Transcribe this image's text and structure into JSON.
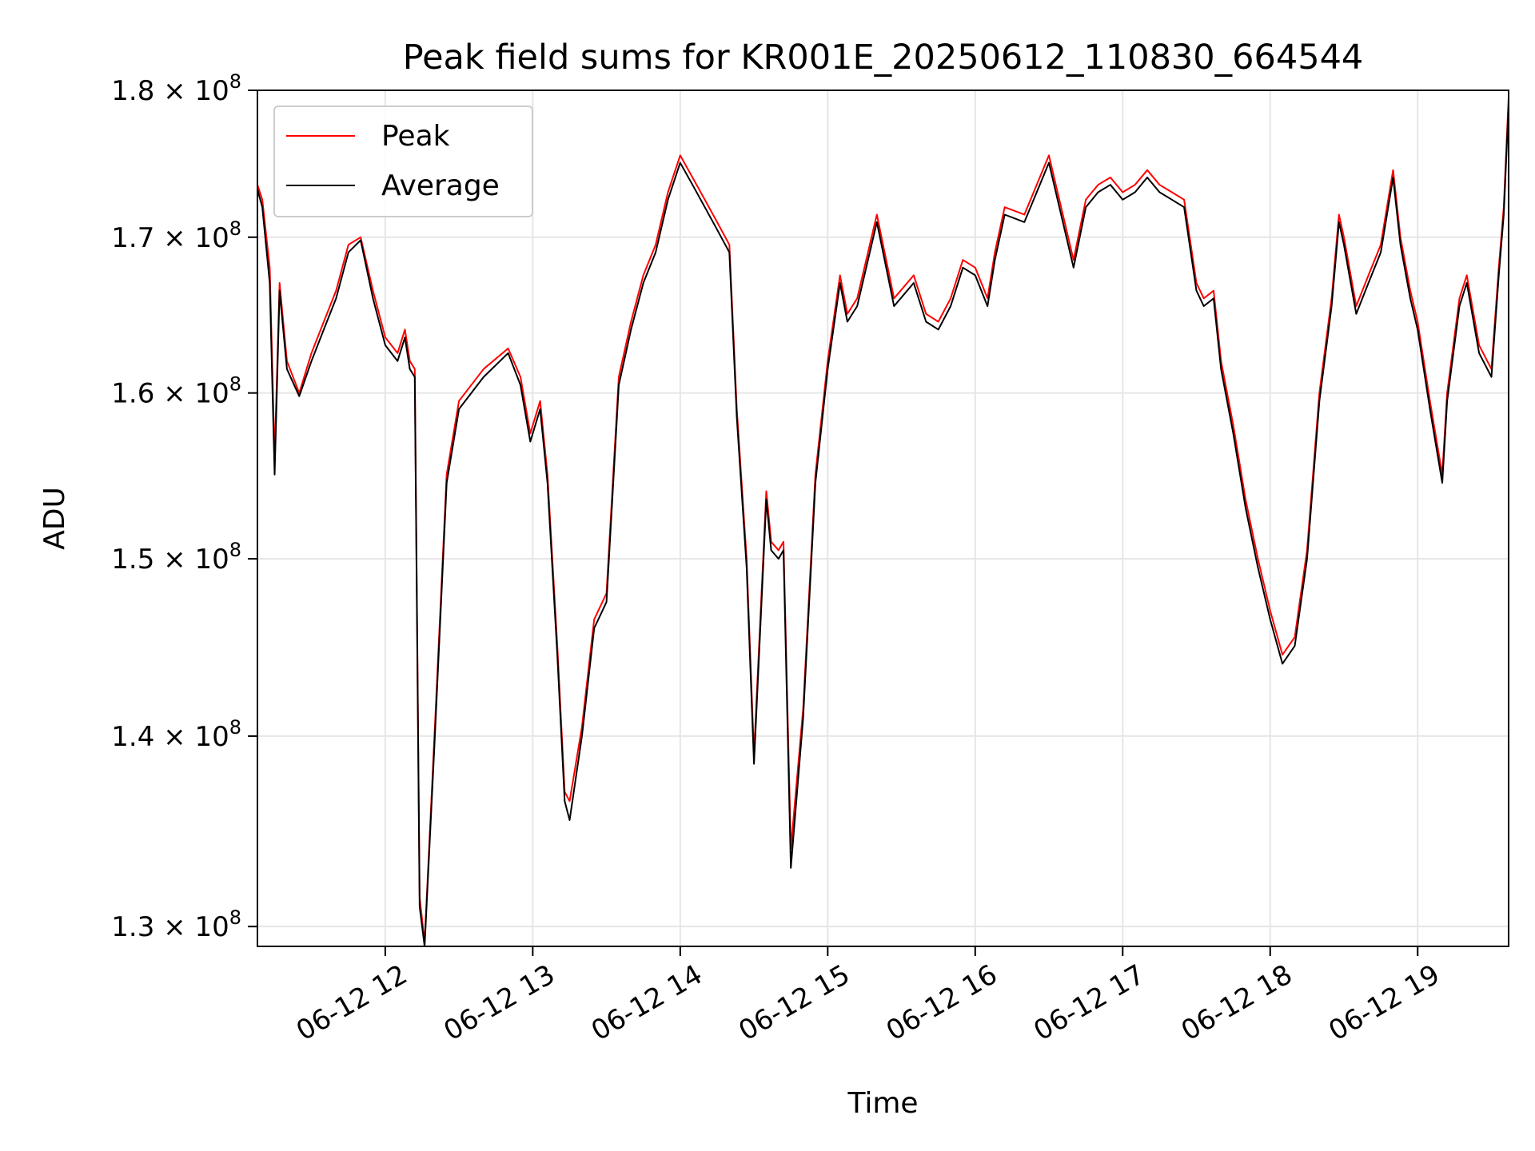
{
  "chart_data": {
    "type": "line",
    "title": "Peak field sums for KR001E_20250612_110830_664544",
    "xlabel": "Time",
    "ylabel": "ADU",
    "yscale": "log",
    "xlim": [
      "2025-06-12T11:08",
      "2025-06-12T19:37"
    ],
    "ylim": [
      129000000,
      180000000
    ],
    "x_ticks": [
      "06-12 12",
      "06-12 13",
      "06-12 14",
      "06-12 15",
      "06-12 16",
      "06-12 17",
      "06-12 18",
      "06-12 19"
    ],
    "y_ticks": [
      {
        "value": 130000000,
        "label": "1.3 × 10^8"
      },
      {
        "value": 140000000,
        "label": "1.4 × 10^8"
      },
      {
        "value": 150000000,
        "label": "1.5 × 10^8"
      },
      {
        "value": 160000000,
        "label": "1.6 × 10^8"
      },
      {
        "value": 170000000,
        "label": "1.7 × 10^8"
      },
      {
        "value": 180000000,
        "label": "1.8 × 10^8"
      }
    ],
    "grid": true,
    "legend_position": "top-left",
    "x": [
      "2025-06-12T11:08",
      "2025-06-12T11:10",
      "2025-06-12T11:13",
      "2025-06-12T11:15",
      "2025-06-12T11:17",
      "2025-06-12T11:20",
      "2025-06-12T11:25",
      "2025-06-12T11:30",
      "2025-06-12T11:35",
      "2025-06-12T11:40",
      "2025-06-12T11:45",
      "2025-06-12T11:50",
      "2025-06-12T11:55",
      "2025-06-12T12:00",
      "2025-06-12T12:05",
      "2025-06-12T12:08",
      "2025-06-12T12:10",
      "2025-06-12T12:12",
      "2025-06-12T12:14",
      "2025-06-12T12:16",
      "2025-06-12T12:20",
      "2025-06-12T12:25",
      "2025-06-12T12:30",
      "2025-06-12T12:40",
      "2025-06-12T12:50",
      "2025-06-12T12:55",
      "2025-06-12T12:59",
      "2025-06-12T13:03",
      "2025-06-12T13:06",
      "2025-06-12T13:10",
      "2025-06-12T13:13",
      "2025-06-12T13:15",
      "2025-06-12T13:20",
      "2025-06-12T13:25",
      "2025-06-12T13:30",
      "2025-06-12T13:35",
      "2025-06-12T13:40",
      "2025-06-12T13:45",
      "2025-06-12T13:50",
      "2025-06-12T13:55",
      "2025-06-12T14:00",
      "2025-06-12T14:05",
      "2025-06-12T14:10",
      "2025-06-12T14:15",
      "2025-06-12T14:20",
      "2025-06-12T14:23",
      "2025-06-12T14:27",
      "2025-06-12T14:30",
      "2025-06-12T14:35",
      "2025-06-12T14:37",
      "2025-06-12T14:40",
      "2025-06-12T14:42",
      "2025-06-12T14:45",
      "2025-06-12T14:50",
      "2025-06-12T14:55",
      "2025-06-12T15:00",
      "2025-06-12T15:05",
      "2025-06-12T15:08",
      "2025-06-12T15:12",
      "2025-06-12T15:20",
      "2025-06-12T15:27",
      "2025-06-12T15:35",
      "2025-06-12T15:40",
      "2025-06-12T15:45",
      "2025-06-12T15:50",
      "2025-06-12T15:55",
      "2025-06-12T16:00",
      "2025-06-12T16:05",
      "2025-06-12T16:08",
      "2025-06-12T16:12",
      "2025-06-12T16:20",
      "2025-06-12T16:30",
      "2025-06-12T16:40",
      "2025-06-12T16:45",
      "2025-06-12T16:50",
      "2025-06-12T16:55",
      "2025-06-12T17:00",
      "2025-06-12T17:05",
      "2025-06-12T17:10",
      "2025-06-12T17:15",
      "2025-06-12T17:20",
      "2025-06-12T17:25",
      "2025-06-12T17:30",
      "2025-06-12T17:33",
      "2025-06-12T17:37",
      "2025-06-12T17:40",
      "2025-06-12T17:45",
      "2025-06-12T17:50",
      "2025-06-12T17:55",
      "2025-06-12T18:00",
      "2025-06-12T18:05",
      "2025-06-12T18:10",
      "2025-06-12T18:15",
      "2025-06-12T18:20",
      "2025-06-12T18:25",
      "2025-06-12T18:28",
      "2025-06-12T18:30",
      "2025-06-12T18:35",
      "2025-06-12T18:40",
      "2025-06-12T18:45",
      "2025-06-12T18:50",
      "2025-06-12T18:53",
      "2025-06-12T18:57",
      "2025-06-12T19:00",
      "2025-06-12T19:05",
      "2025-06-12T19:10",
      "2025-06-12T19:12",
      "2025-06-12T19:17",
      "2025-06-12T19:20",
      "2025-06-12T19:25",
      "2025-06-12T19:30",
      "2025-06-12T19:33",
      "2025-06-12T19:35",
      "2025-06-12T19:37"
    ],
    "series": [
      {
        "name": "Peak",
        "color": "#ff0000",
        "values": [
          173500000,
          172500000,
          168000000,
          156000000,
          167000000,
          162000000,
          160000000,
          162500000,
          164500000,
          166500000,
          169500000,
          170000000,
          166500000,
          163500000,
          162500000,
          164000000,
          162000000,
          161500000,
          131500000,
          129200000,
          140000000,
          155000000,
          159500000,
          161500000,
          162800000,
          161000000,
          157500000,
          159500000,
          155000000,
          145000000,
          137000000,
          136500000,
          140500000,
          146500000,
          148000000,
          161000000,
          164500000,
          167500000,
          169500000,
          173000000,
          175500000,
          174000000,
          172500000,
          171000000,
          169500000,
          159000000,
          150000000,
          139000000,
          154000000,
          151000000,
          150500000,
          151000000,
          134000000,
          141500000,
          155000000,
          162000000,
          167500000,
          165000000,
          166000000,
          171500000,
          166000000,
          167500000,
          165000000,
          164500000,
          166000000,
          168500000,
          168000000,
          166000000,
          169000000,
          172000000,
          171500000,
          175500000,
          168500000,
          172500000,
          173500000,
          174000000,
          173000000,
          173500000,
          174500000,
          173500000,
          173000000,
          172500000,
          167000000,
          166000000,
          166500000,
          162000000,
          158000000,
          153500000,
          150000000,
          147000000,
          144500000,
          145500000,
          150500000,
          160000000,
          166000000,
          171500000,
          170000000,
          165500000,
          167500000,
          169500000,
          174500000,
          170000000,
          166500000,
          164500000,
          159500000,
          155000000,
          160000000,
          166000000,
          167500000,
          163000000,
          161500000,
          168000000,
          172000000,
          179500000
        ]
      },
      {
        "name": "Average",
        "color": "#000000",
        "values": [
          173200000,
          172000000,
          167000000,
          155000000,
          166500000,
          161500000,
          159800000,
          162000000,
          164000000,
          166000000,
          169000000,
          169800000,
          166000000,
          163000000,
          162000000,
          163500000,
          161500000,
          161000000,
          131000000,
          129000000,
          139500000,
          154500000,
          159000000,
          161000000,
          162500000,
          160500000,
          157000000,
          159000000,
          154500000,
          144500000,
          136500000,
          135500000,
          140000000,
          146000000,
          147500000,
          160500000,
          164000000,
          167000000,
          169000000,
          172500000,
          175000000,
          173500000,
          172000000,
          170500000,
          169000000,
          158500000,
          149500000,
          138500000,
          153500000,
          150500000,
          150000000,
          150500000,
          133000000,
          141000000,
          154500000,
          161500000,
          167000000,
          164500000,
          165500000,
          171000000,
          165500000,
          167000000,
          164500000,
          164000000,
          165500000,
          168000000,
          167500000,
          165500000,
          168500000,
          171500000,
          171000000,
          175000000,
          168000000,
          172000000,
          173000000,
          173500000,
          172500000,
          173000000,
          174000000,
          173000000,
          172500000,
          172000000,
          166500000,
          165500000,
          166000000,
          161500000,
          157500000,
          153000000,
          149500000,
          146500000,
          144000000,
          145000000,
          150000000,
          159500000,
          165500000,
          171000000,
          169500000,
          165000000,
          167000000,
          169000000,
          174000000,
          169500000,
          166000000,
          164000000,
          159000000,
          154500000,
          159500000,
          165500000,
          167000000,
          162500000,
          161000000,
          167500000,
          171500000,
          179000000
        ]
      }
    ]
  }
}
